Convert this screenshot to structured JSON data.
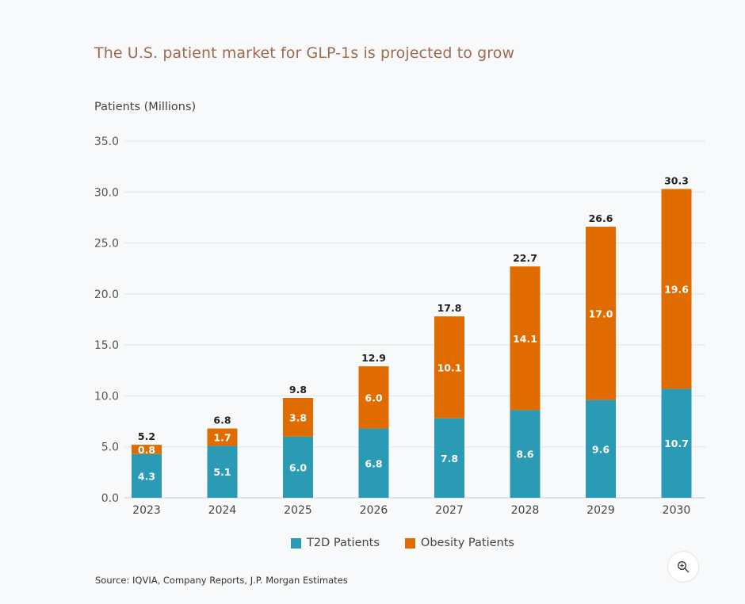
{
  "title": "The U.S. patient market for GLP-1s is projected to grow",
  "source": "Source: IQVIA, Company Reports, J.P. Morgan Estimates",
  "colors": {
    "t2d": "#2b9bb5",
    "obesity": "#e06c00",
    "title": "#a06a4e"
  },
  "zoom_icon": "zoom-in-icon",
  "chart_data": {
    "type": "bar",
    "stacked": true,
    "ylabel": "Patients (Millions)",
    "xlabel": "",
    "ylim": [
      0,
      35
    ],
    "yticks": [
      "0.0",
      "5.0",
      "10.0",
      "15.0",
      "20.0",
      "25.0",
      "30.0",
      "35.0"
    ],
    "grid": true,
    "legend_position": "bottom",
    "categories": [
      "2023",
      "2024",
      "2025",
      "2026",
      "2027",
      "2028",
      "2029",
      "2030"
    ],
    "series": [
      {
        "name": "T2D Patients",
        "color": "#2b9bb5",
        "values": [
          4.3,
          5.1,
          6.0,
          6.8,
          7.8,
          8.6,
          9.6,
          10.7
        ]
      },
      {
        "name": "Obesity Patients",
        "color": "#e06c00",
        "values": [
          0.8,
          1.7,
          3.8,
          6.0,
          10.1,
          14.1,
          17.0,
          19.6
        ]
      }
    ],
    "totals": [
      5.2,
      6.8,
      9.8,
      12.9,
      17.8,
      22.7,
      26.6,
      30.3
    ]
  }
}
